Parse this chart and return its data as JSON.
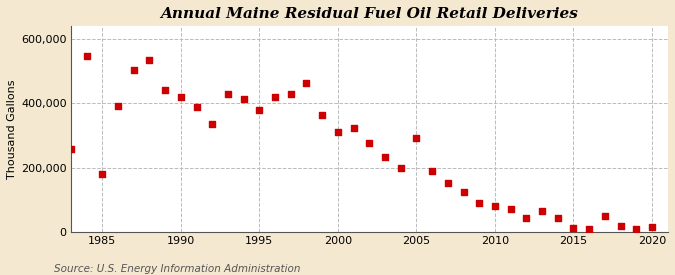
{
  "title": "Annual Maine Residual Fuel Oil Retail Deliveries",
  "ylabel": "Thousand Gallons",
  "source": "Source: U.S. Energy Information Administration",
  "background_color": "#f5e8d0",
  "plot_background_color": "#ffffff",
  "grid_color": "#bbbbbb",
  "marker_color": "#cc0000",
  "years": [
    1983,
    1984,
    1985,
    1986,
    1987,
    1988,
    1989,
    1990,
    1991,
    1992,
    1993,
    1994,
    1995,
    1996,
    1997,
    1998,
    1999,
    2000,
    2001,
    2002,
    2003,
    2004,
    2005,
    2006,
    2007,
    2008,
    2009,
    2010,
    2011,
    2012,
    2013,
    2014,
    2015,
    2016,
    2017,
    2018,
    2019,
    2020
  ],
  "values": [
    258000,
    548000,
    180000,
    393000,
    505000,
    535000,
    443000,
    420000,
    390000,
    335000,
    430000,
    415000,
    378000,
    420000,
    430000,
    463000,
    365000,
    310000,
    324000,
    276000,
    232000,
    198000,
    293000,
    188000,
    152000,
    123000,
    90000,
    80000,
    70000,
    43000,
    65000,
    43000,
    12000,
    8000,
    50000,
    17000,
    10000,
    16000
  ],
  "xlim": [
    1983,
    2021
  ],
  "ylim": [
    0,
    640000
  ],
  "yticks": [
    0,
    200000,
    400000,
    600000
  ],
  "xticks": [
    1985,
    1990,
    1995,
    2000,
    2005,
    2010,
    2015,
    2020
  ],
  "title_fontsize": 11,
  "axis_fontsize": 8,
  "source_fontsize": 7.5
}
